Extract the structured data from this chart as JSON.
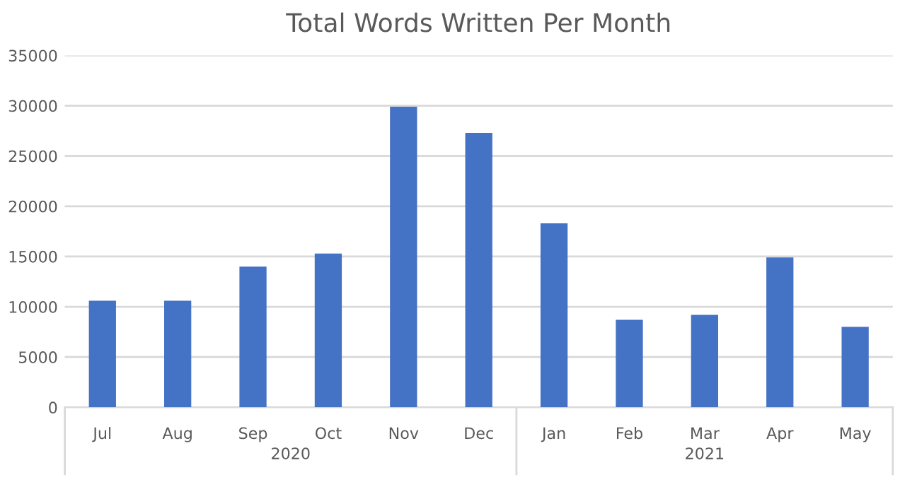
{
  "chart_data": {
    "type": "bar",
    "title": "Total Words Written Per Month",
    "categories": [
      "Jul",
      "Aug",
      "Sep",
      "Oct",
      "Nov",
      "Dec",
      "Jan",
      "Feb",
      "Mar",
      "Apr",
      "May"
    ],
    "values": [
      10600,
      10600,
      14000,
      15300,
      29900,
      27300,
      18300,
      8700,
      9200,
      14900,
      8000
    ],
    "color": "#4472c4",
    "ylim": [
      0,
      35000
    ],
    "yticks": [
      0,
      5000,
      10000,
      15000,
      20000,
      25000,
      30000,
      35000
    ],
    "grid": "y",
    "annotations": [
      "2020",
      "2021"
    ]
  }
}
